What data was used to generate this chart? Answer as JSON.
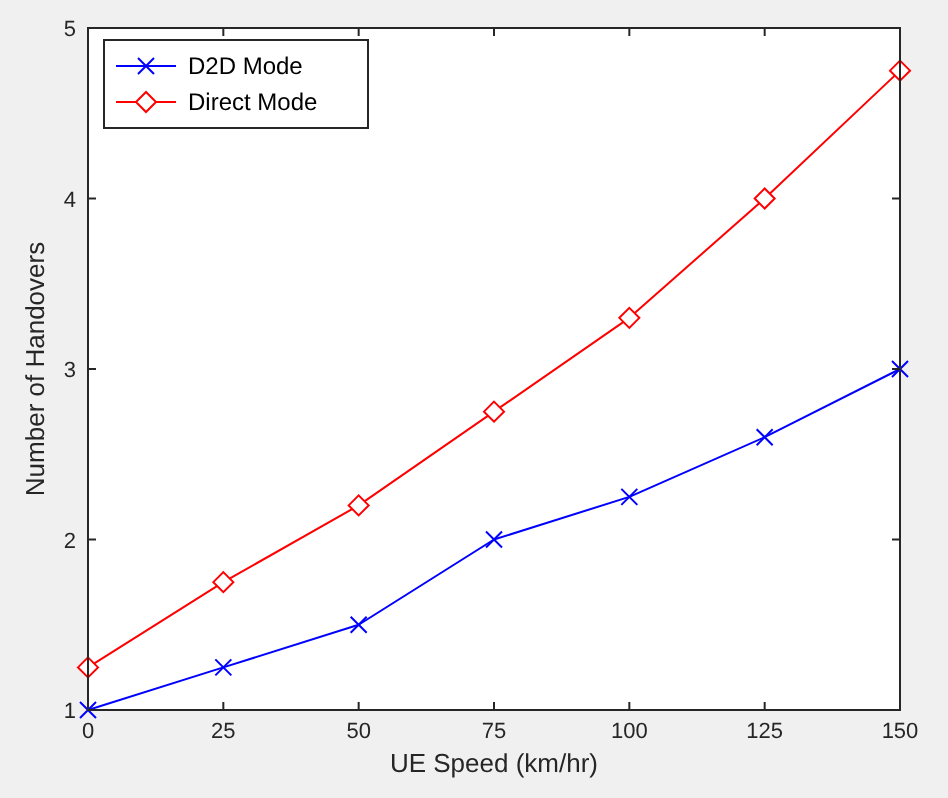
{
  "chart_data": {
    "type": "line",
    "xlabel": "UE Speed (km/hr)",
    "ylabel": "Number of Handovers",
    "x": [
      0,
      25,
      50,
      75,
      100,
      125,
      150
    ],
    "series": [
      {
        "name": "D2D Mode",
        "color": "#0000ff",
        "marker": "cross",
        "values": [
          1,
          1.25,
          1.5,
          2,
          2.25,
          2.6,
          3
        ]
      },
      {
        "name": "Direct Mode",
        "color": "#ff0000",
        "marker": "diamond",
        "values": [
          1.25,
          1.75,
          2.2,
          2.75,
          3.3,
          4,
          4.75
        ]
      }
    ],
    "xlim": [
      0,
      150
    ],
    "xticks": [
      0,
      25,
      50,
      75,
      100,
      125,
      150
    ],
    "ylim": [
      1,
      5
    ],
    "yticks": [
      1,
      2,
      3,
      4,
      5
    ],
    "grid": false,
    "legend": "top left",
    "line_style": "solid"
  }
}
